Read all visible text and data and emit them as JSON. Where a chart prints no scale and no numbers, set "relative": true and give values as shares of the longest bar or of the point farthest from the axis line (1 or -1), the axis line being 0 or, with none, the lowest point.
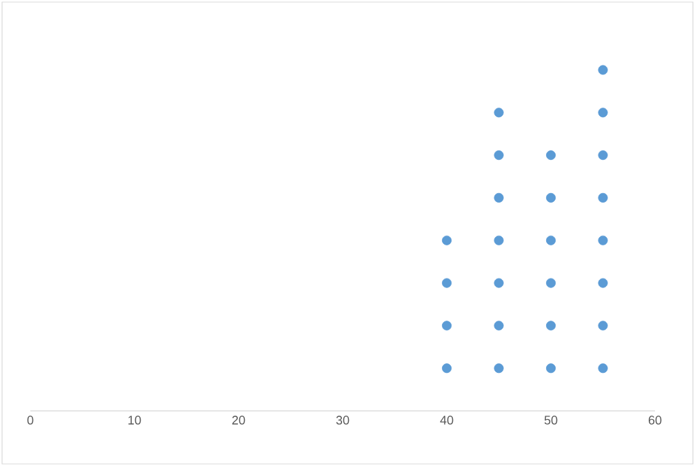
{
  "chart_data": {
    "type": "scatter",
    "relative": true,
    "x": [
      40,
      40,
      40,
      40,
      45,
      45,
      45,
      45,
      45,
      45,
      45,
      50,
      50,
      50,
      50,
      50,
      50,
      55,
      55,
      55,
      55,
      55,
      55,
      55,
      55
    ],
    "values": [
      0.125,
      0.25,
      0.375,
      0.5,
      0.125,
      0.25,
      0.375,
      0.5,
      0.625,
      0.75,
      0.875,
      0.125,
      0.25,
      0.375,
      0.5,
      0.625,
      0.75,
      0.125,
      0.25,
      0.375,
      0.5,
      0.625,
      0.75,
      0.875,
      1
    ],
    "color": "#5b9bd5",
    "marker": "circle",
    "xlim": [
      0,
      60
    ],
    "xticks": [
      0,
      10,
      20,
      30,
      40,
      50,
      60
    ],
    "tick_labels": "x",
    "grid": false
  }
}
